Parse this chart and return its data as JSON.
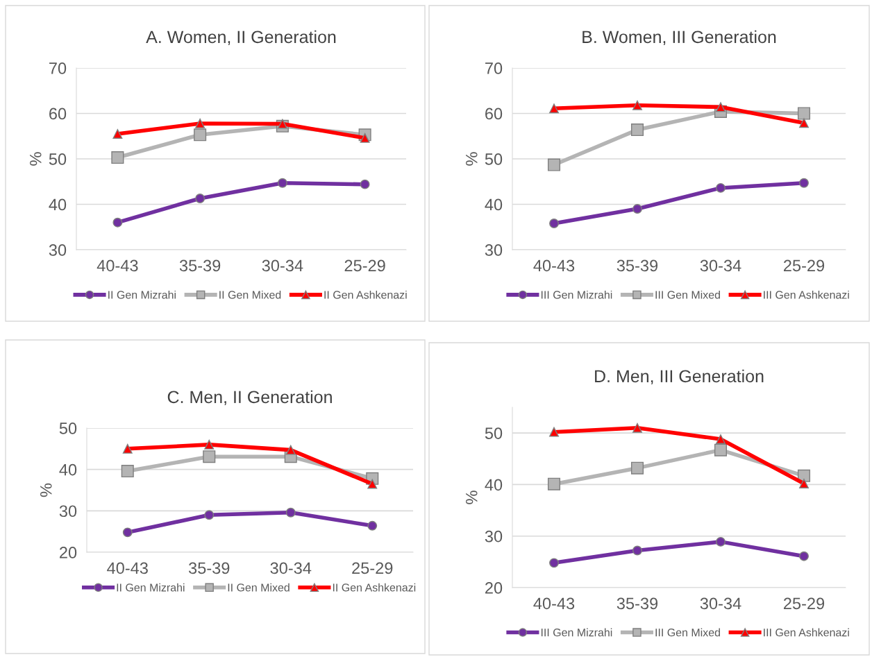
{
  "chart_data": [
    {
      "type": "line",
      "title": "A. Women, II Generation",
      "ylabel": "%",
      "categories": [
        "40-43",
        "35-39",
        "30-34",
        "25-29"
      ],
      "ylim": [
        30,
        70
      ],
      "yticks": [
        30,
        40,
        50,
        60,
        70
      ],
      "grid": "y",
      "legend": "bottom",
      "line_style": "solid",
      "series": [
        {
          "name": "II Gen Mizrahi",
          "color": "#7030a0",
          "marker": "circle",
          "values": [
            36.0,
            41.3,
            44.7,
            44.4
          ]
        },
        {
          "name": "II Gen Mixed",
          "color": "#b4b4b4",
          "marker": "square",
          "values": [
            50.3,
            55.3,
            57.2,
            55.3
          ]
        },
        {
          "name": "II Gen Ashkenazi",
          "color": "#ff0000",
          "marker": "triangle",
          "values": [
            55.5,
            57.8,
            57.7,
            54.6
          ]
        }
      ]
    },
    {
      "type": "line",
      "title": "B. Women, III Generation",
      "ylabel": "%",
      "categories": [
        "40-43",
        "35-39",
        "30-34",
        "25-29"
      ],
      "ylim": [
        30,
        70
      ],
      "yticks": [
        30,
        40,
        50,
        60,
        70
      ],
      "grid": "y",
      "legend": "bottom",
      "line_style": "solid",
      "series": [
        {
          "name": "III Gen Mizrahi",
          "color": "#7030a0",
          "marker": "circle",
          "values": [
            35.8,
            39.0,
            43.6,
            44.7
          ]
        },
        {
          "name": "III Gen Mixed",
          "color": "#b4b4b4",
          "marker": "square",
          "values": [
            48.7,
            56.4,
            60.4,
            60.0
          ]
        },
        {
          "name": "III Gen Ashkenazi",
          "color": "#ff0000",
          "marker": "triangle",
          "values": [
            61.1,
            61.8,
            61.4,
            57.9
          ]
        }
      ]
    },
    {
      "type": "line",
      "title": "C. Men, II Generation",
      "ylabel": "%",
      "categories": [
        "40-43",
        "35-39",
        "30-34",
        "25-29"
      ],
      "ylim": [
        20,
        50
      ],
      "yticks": [
        20,
        30,
        40,
        50
      ],
      "grid": "y",
      "legend": "bottom",
      "line_style": "solid",
      "series": [
        {
          "name": "II Gen Mizrahi",
          "color": "#7030a0",
          "marker": "circle",
          "values": [
            24.8,
            29.0,
            29.6,
            26.4
          ]
        },
        {
          "name": "II Gen Mixed",
          "color": "#b4b4b4",
          "marker": "square",
          "values": [
            39.6,
            43.1,
            43.1,
            37.8
          ]
        },
        {
          "name": "II Gen Ashkenazi",
          "color": "#ff0000",
          "marker": "triangle",
          "values": [
            45.0,
            46.0,
            44.7,
            36.5
          ]
        }
      ]
    },
    {
      "type": "line",
      "title": "D. Men, III Generation",
      "ylabel": "%",
      "categories": [
        "40-43",
        "35-39",
        "30-34",
        "25-29"
      ],
      "ylim": [
        20,
        55
      ],
      "yticks": [
        20,
        30,
        40,
        50
      ],
      "grid": "y",
      "legend": "bottom",
      "line_style": "solid",
      "series": [
        {
          "name": "III Gen Mizrahi",
          "color": "#7030a0",
          "marker": "circle",
          "values": [
            24.8,
            27.2,
            28.9,
            26.1
          ]
        },
        {
          "name": "III Gen Mixed",
          "color": "#b4b4b4",
          "marker": "square",
          "values": [
            40.1,
            43.2,
            46.7,
            41.7
          ]
        },
        {
          "name": "III Gen Ashkenazi",
          "color": "#ff0000",
          "marker": "triangle",
          "values": [
            50.2,
            51.0,
            48.8,
            40.2
          ]
        }
      ]
    }
  ]
}
